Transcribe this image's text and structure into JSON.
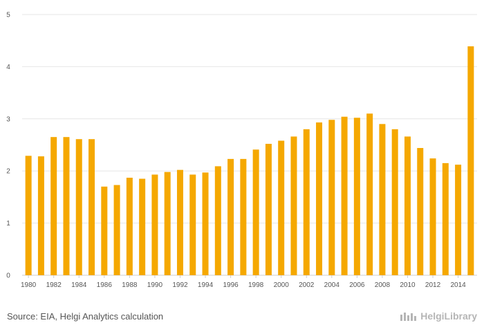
{
  "chart_data": {
    "type": "bar",
    "title": "",
    "xlabel": "",
    "ylabel": "",
    "ylim": [
      0,
      5
    ],
    "yticks": [
      "0",
      "1",
      "2",
      "3",
      "4",
      "5"
    ],
    "grid": true,
    "legend": "none",
    "bar_color": "#f5a800",
    "categories": [
      "1980",
      "1981",
      "1982",
      "1983",
      "1984",
      "1985",
      "1986",
      "1987",
      "1988",
      "1989",
      "1990",
      "1991",
      "1992",
      "1993",
      "1994",
      "1995",
      "1996",
      "1997",
      "1998",
      "1999",
      "2000",
      "2001",
      "2002",
      "2003",
      "2004",
      "2005",
      "2006",
      "2007",
      "2008",
      "2009",
      "2010",
      "2011",
      "2012",
      "2013",
      "2014",
      "2015"
    ],
    "xtick_labels": [
      "1980",
      "1982",
      "1984",
      "1986",
      "1988",
      "1990",
      "1992",
      "1994",
      "1996",
      "1998",
      "2000",
      "2002",
      "2004",
      "2006",
      "2008",
      "2010",
      "2012",
      "2014"
    ],
    "values": [
      2.29,
      2.28,
      2.65,
      2.65,
      2.61,
      2.61,
      1.7,
      1.73,
      1.87,
      1.85,
      1.93,
      1.98,
      2.02,
      1.93,
      1.97,
      2.09,
      2.23,
      2.23,
      2.41,
      2.52,
      2.58,
      2.66,
      2.8,
      2.93,
      2.98,
      3.04,
      3.02,
      3.1,
      2.9,
      2.8,
      2.66,
      2.44,
      2.24,
      2.15,
      2.12,
      4.39
    ]
  },
  "footer": {
    "source": "Source: EIA, Helgi Analytics calculation",
    "brand": "HelgiLibrary",
    "brand_icon": "helgi-logo-icon"
  },
  "colors": {
    "bar": "#f5a800",
    "grid": "#e6e6e6",
    "axis": "#cccccc",
    "text": "#555555",
    "brand": "#b5b5b5"
  }
}
